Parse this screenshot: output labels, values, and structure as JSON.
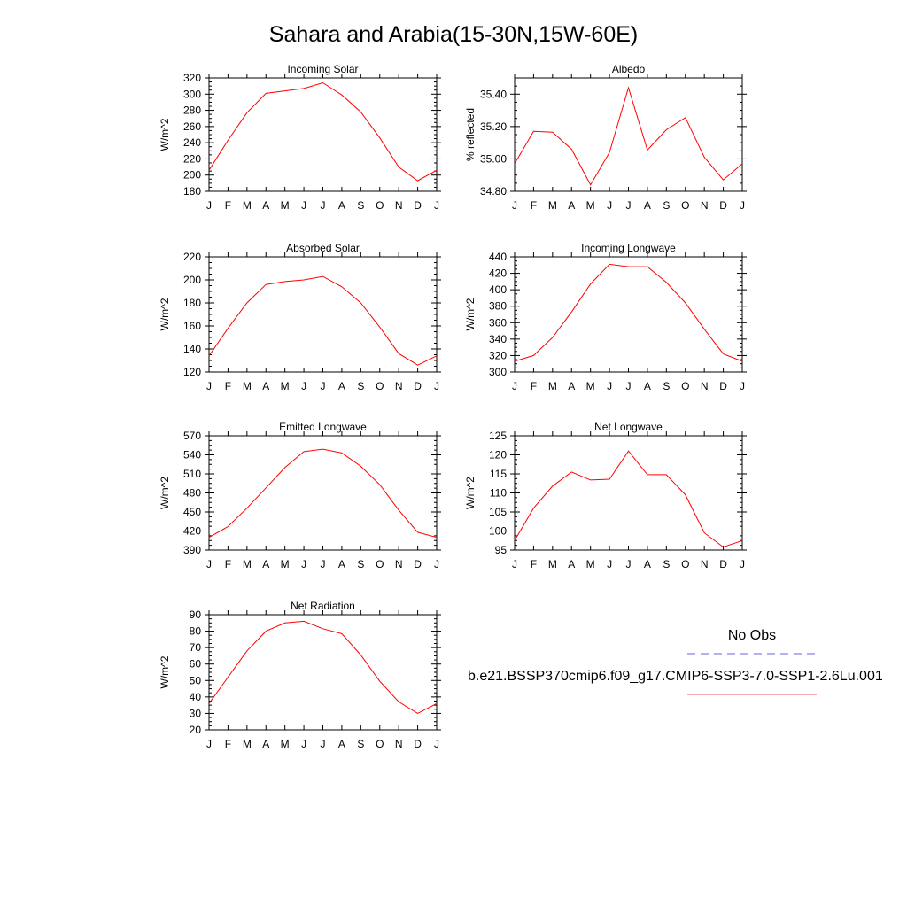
{
  "figure": {
    "title": "Sahara and Arabia(15-30N,15W-60E)"
  },
  "legend": {
    "entries": [
      {
        "label": "No Obs",
        "color": "#6666dd",
        "style": "dashed"
      },
      {
        "label": "b.e21.BSSP370cmip6.f09_g17.CMIP6-SSP3-7.0-SSP1-2.6Lu.001",
        "color": "#ee5555",
        "style": "solid"
      }
    ]
  },
  "chart_data": [
    {
      "type": "line",
      "title": "Incoming Solar",
      "ylabel": "W/m^2",
      "categories": [
        "J",
        "F",
        "M",
        "A",
        "M",
        "J",
        "J",
        "A",
        "S",
        "O",
        "N",
        "D",
        "J"
      ],
      "ylim": [
        180,
        320
      ],
      "yticks": [
        180,
        200,
        220,
        240,
        260,
        280,
        300,
        320
      ],
      "ytick_labels": [
        "180",
        "200",
        "220",
        "240",
        "260",
        "280",
        "300",
        "320"
      ],
      "series": [
        {
          "color": "#ff0000",
          "values": [
            206,
            243,
            277,
            301,
            304,
            307,
            314,
            299,
            278,
            246,
            210,
            193,
            206
          ]
        }
      ]
    },
    {
      "type": "line",
      "title": "Albedo",
      "ylabel": "% reflected",
      "categories": [
        "J",
        "F",
        "M",
        "A",
        "M",
        "J",
        "J",
        "A",
        "S",
        "O",
        "N",
        "D",
        "J"
      ],
      "ylim": [
        34.8,
        35.5
      ],
      "yticks": [
        34.8,
        35.0,
        35.2,
        35.4
      ],
      "ytick_labels": [
        "34.80",
        "35.00",
        "35.20",
        "35.40"
      ],
      "series": [
        {
          "color": "#ff0000",
          "values": [
            34.97,
            35.17,
            35.165,
            35.06,
            34.84,
            35.04,
            35.44,
            35.055,
            35.18,
            35.255,
            35.01,
            34.87,
            34.97
          ]
        }
      ]
    },
    {
      "type": "line",
      "title": "Absorbed Solar",
      "ylabel": "W/m^2",
      "categories": [
        "J",
        "F",
        "M",
        "A",
        "M",
        "J",
        "J",
        "A",
        "S",
        "O",
        "N",
        "D",
        "J"
      ],
      "ylim": [
        120,
        220
      ],
      "yticks": [
        120,
        140,
        160,
        180,
        200,
        220
      ],
      "ytick_labels": [
        "120",
        "140",
        "160",
        "180",
        "200",
        "220"
      ],
      "series": [
        {
          "color": "#ff0000",
          "values": [
            134,
            158,
            180,
            196,
            198.5,
            200,
            203,
            194,
            180,
            159,
            136,
            126,
            134
          ]
        }
      ]
    },
    {
      "type": "line",
      "title": "Incoming Longwave",
      "ylabel": "W/m^2",
      "categories": [
        "J",
        "F",
        "M",
        "A",
        "M",
        "J",
        "J",
        "A",
        "S",
        "O",
        "N",
        "D",
        "J"
      ],
      "ylim": [
        300,
        440
      ],
      "yticks": [
        300,
        320,
        340,
        360,
        380,
        400,
        420,
        440
      ],
      "ytick_labels": [
        "300",
        "320",
        "340",
        "360",
        "380",
        "400",
        "420",
        "440"
      ],
      "series": [
        {
          "color": "#ff0000",
          "values": [
            313,
            320,
            342,
            373,
            407,
            431,
            428,
            428,
            409,
            384,
            352,
            322,
            313
          ]
        }
      ]
    },
    {
      "type": "line",
      "title": "Emitted Longwave",
      "ylabel": "W/m^2",
      "categories": [
        "J",
        "F",
        "M",
        "A",
        "M",
        "J",
        "J",
        "A",
        "S",
        "O",
        "N",
        "D",
        "J"
      ],
      "ylim": [
        390,
        570
      ],
      "yticks": [
        390,
        420,
        450,
        480,
        510,
        540,
        570
      ],
      "ytick_labels": [
        "390",
        "420",
        "450",
        "480",
        "510",
        "540",
        "570"
      ],
      "series": [
        {
          "color": "#ff0000",
          "values": [
            410,
            427,
            456,
            488,
            520,
            545,
            549,
            543,
            522,
            493,
            453,
            418,
            410
          ]
        }
      ]
    },
    {
      "type": "line",
      "title": "Net Longwave",
      "ylabel": "W/m^2",
      "categories": [
        "J",
        "F",
        "M",
        "A",
        "M",
        "J",
        "J",
        "A",
        "S",
        "O",
        "N",
        "D",
        "J"
      ],
      "ylim": [
        95,
        125
      ],
      "yticks": [
        95,
        100,
        105,
        110,
        115,
        120,
        125
      ],
      "ytick_labels": [
        "95",
        "100",
        "105",
        "110",
        "115",
        "120",
        "125"
      ],
      "series": [
        {
          "color": "#ff0000",
          "values": [
            97.5,
            106,
            111.8,
            115.5,
            113.4,
            113.6,
            121,
            114.8,
            114.8,
            109.5,
            99.5,
            95.8,
            97.5
          ]
        }
      ]
    },
    {
      "type": "line",
      "title": "Net Radiation",
      "ylabel": "W/m^2",
      "categories": [
        "J",
        "F",
        "M",
        "A",
        "M",
        "J",
        "J",
        "A",
        "S",
        "O",
        "N",
        "D",
        "J"
      ],
      "ylim": [
        20,
        90
      ],
      "yticks": [
        20,
        30,
        40,
        50,
        60,
        70,
        80,
        90
      ],
      "ytick_labels": [
        "20",
        "30",
        "40",
        "50",
        "60",
        "70",
        "80",
        "90"
      ],
      "series": [
        {
          "color": "#ff0000",
          "values": [
            36,
            52,
            68,
            80,
            85,
            86,
            81.5,
            78.5,
            65.5,
            49.5,
            37,
            30,
            36
          ]
        }
      ]
    }
  ]
}
